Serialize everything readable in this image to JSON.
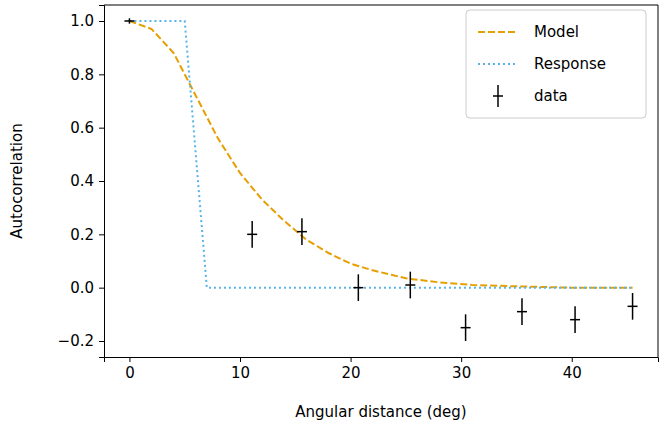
{
  "chart_data": {
    "type": "line",
    "x_label": "Angular distance (deg)",
    "y_label": "Autocorrelation",
    "xlim": [
      -2.3,
      47.8
    ],
    "ylim": [
      -0.26,
      1.06
    ],
    "xticks": [
      0,
      10,
      20,
      30,
      40
    ],
    "yticks": [
      {
        "value": -0.2,
        "label": "−0.2"
      },
      {
        "value": 0.0,
        "label": "0.0"
      },
      {
        "value": 0.2,
        "label": "0.2"
      },
      {
        "value": 0.4,
        "label": "0.4"
      },
      {
        "value": 0.6,
        "label": "0.6"
      },
      {
        "value": 0.8,
        "label": "0.8"
      },
      {
        "value": 1.0,
        "label": "1.0"
      }
    ],
    "legend": "upper right",
    "series": [
      {
        "name": "Model",
        "type": "line",
        "color": "#e69f00",
        "line_style": "dashed",
        "x": [
          0,
          2,
          4,
          6,
          8,
          10,
          12,
          14,
          16,
          18,
          20,
          22,
          25,
          28,
          31,
          35,
          40,
          45.5
        ],
        "values": [
          1.0,
          0.97,
          0.88,
          0.72,
          0.56,
          0.43,
          0.33,
          0.25,
          0.18,
          0.13,
          0.09,
          0.065,
          0.035,
          0.02,
          0.01,
          0.005,
          0.0,
          0.0
        ]
      },
      {
        "name": "Response",
        "type": "line",
        "color": "#56b4e9",
        "line_style": "dotted",
        "x": [
          0,
          5,
          7,
          45.5
        ],
        "values": [
          1.0,
          1.0,
          0.0,
          0.0
        ]
      },
      {
        "name": "data",
        "type": "scatter",
        "color": "#000000",
        "marker": "+",
        "x": [
          0,
          11.1,
          15.6,
          20.7,
          25.4,
          30.4,
          35.5,
          40.3,
          45.5
        ],
        "values": [
          1.0,
          0.2,
          0.21,
          0.0,
          0.01,
          -0.15,
          -0.09,
          -0.12,
          -0.07
        ],
        "errors": [
          0.01,
          0.05,
          0.05,
          0.05,
          0.05,
          0.05,
          0.05,
          0.05,
          0.05
        ]
      }
    ]
  }
}
